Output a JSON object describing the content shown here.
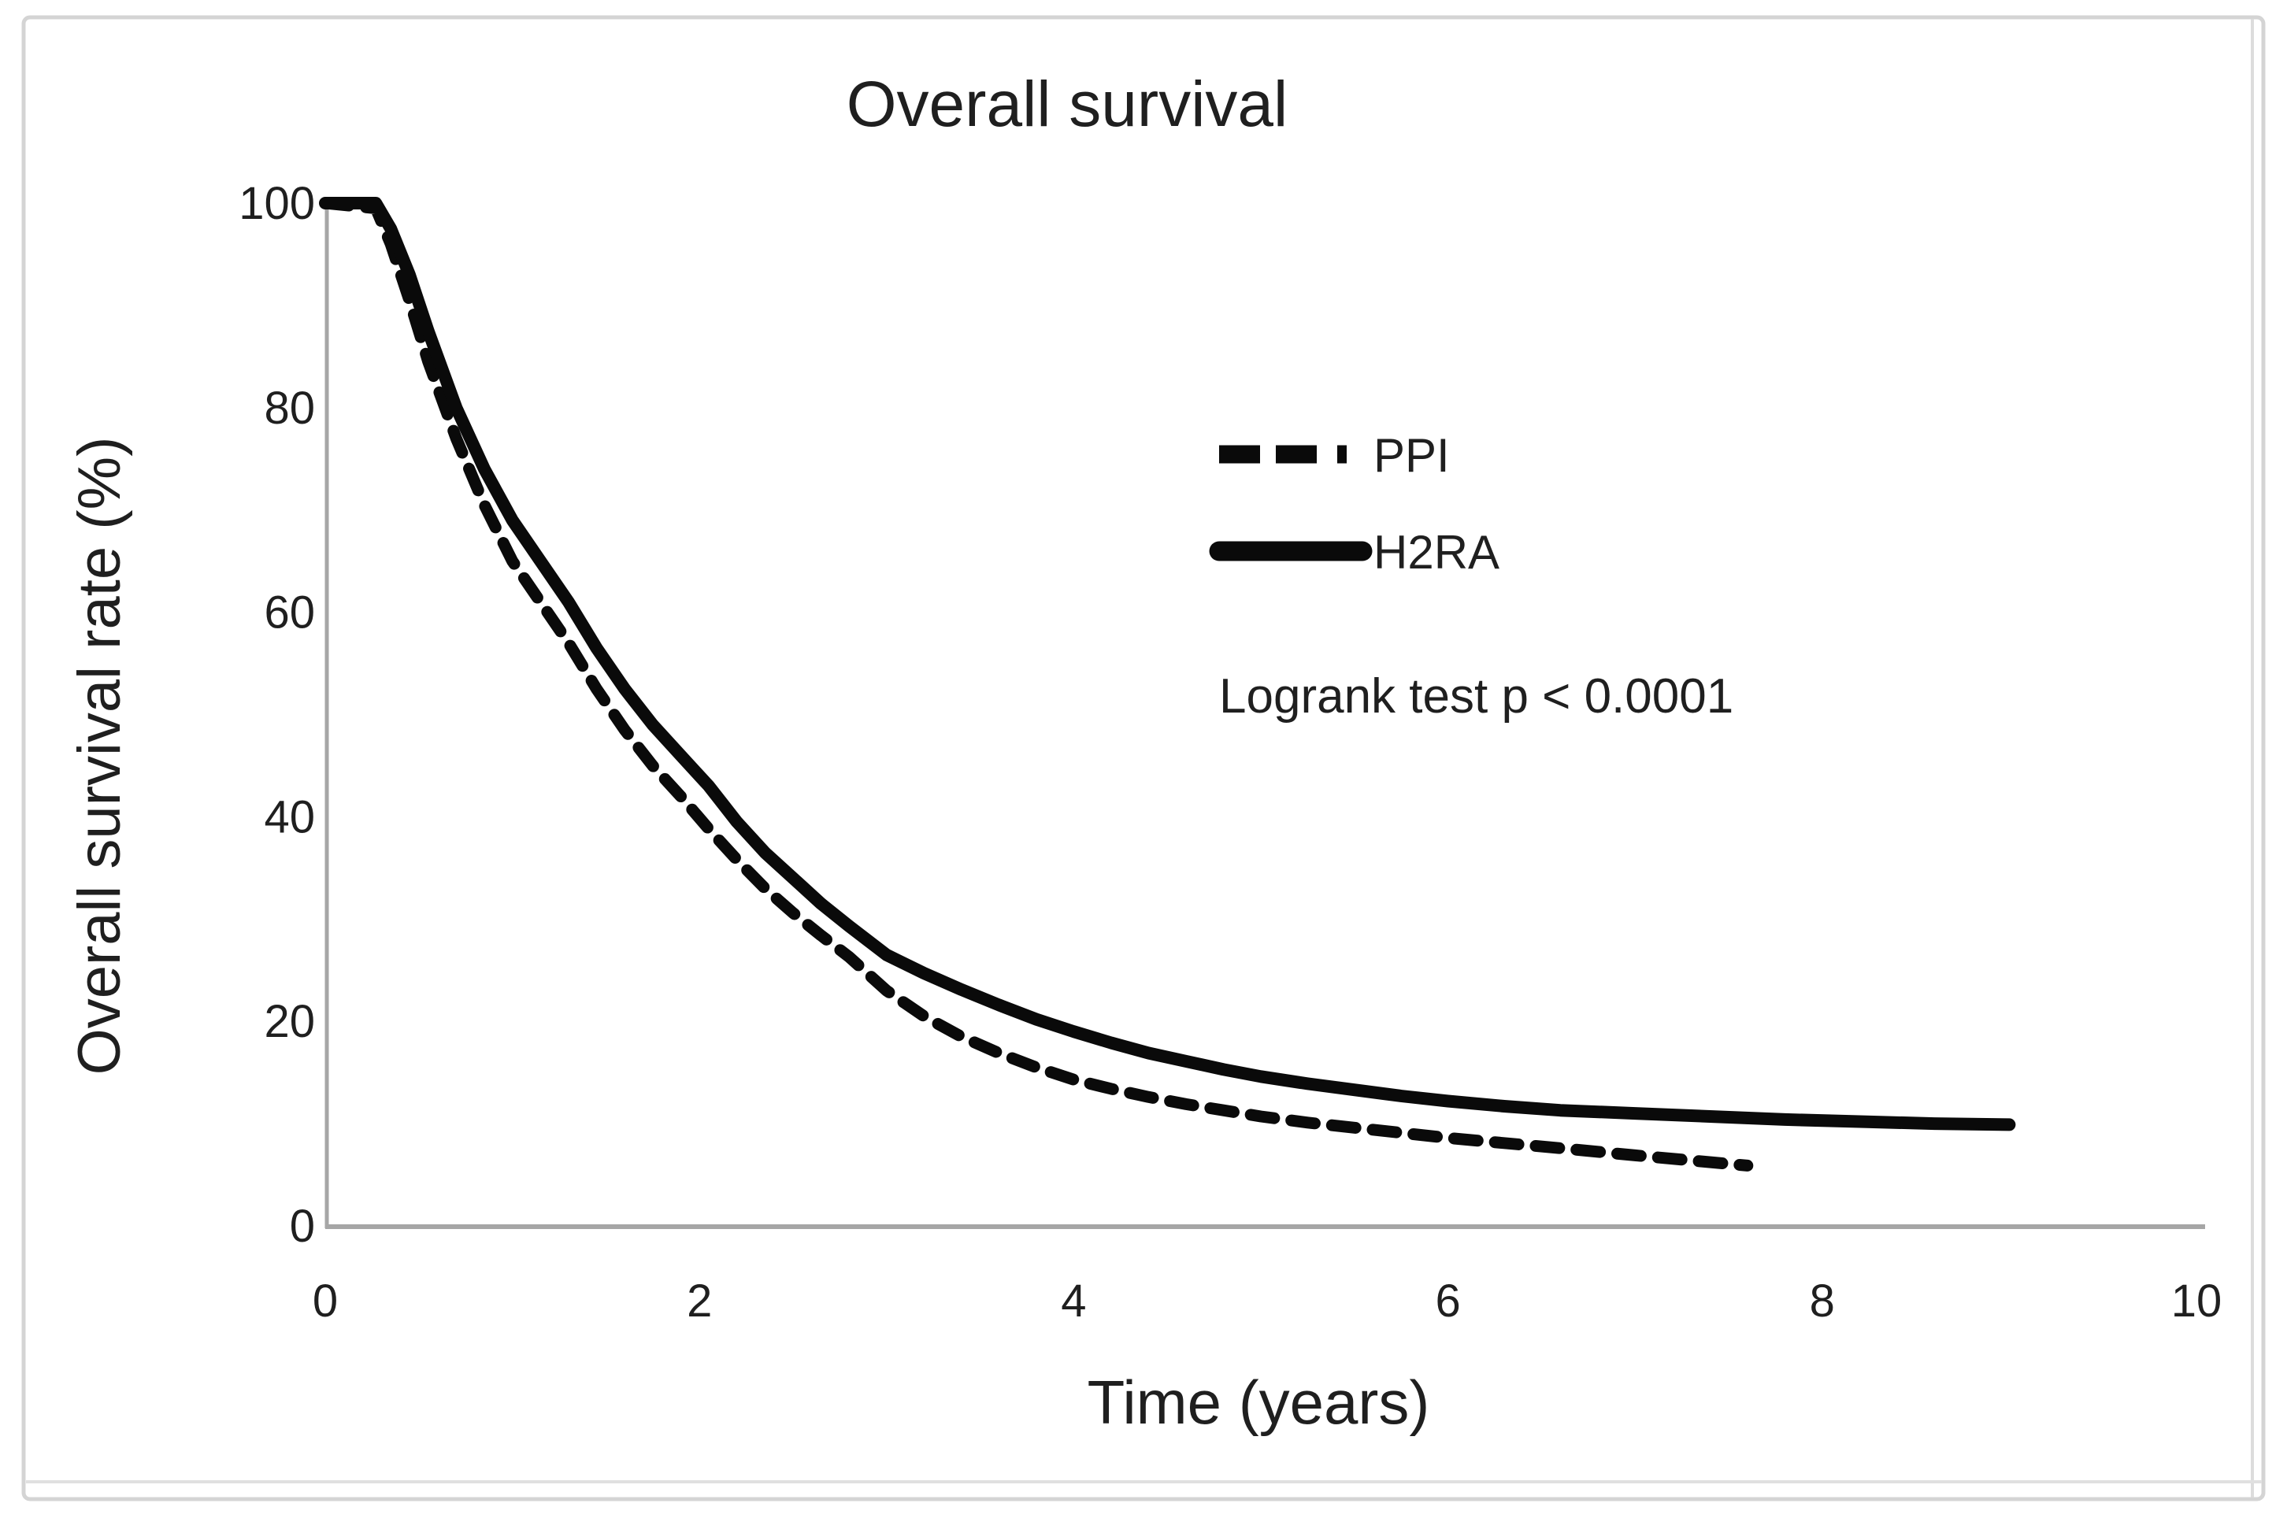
{
  "figure": {
    "title": "Overall survival",
    "x_axis": {
      "label": "Time (years)"
    },
    "y_axis": {
      "label": "Overall survival rate (%)"
    },
    "legend": [
      {
        "label": "PPI",
        "style": "dashed"
      },
      {
        "label": "H2RA",
        "style": "solid"
      }
    ],
    "annotation": "Logrank test p < 0.0001",
    "colors": {
      "curve": "#0a0a0a",
      "axis_line": "#a6a6a6",
      "border": "#d4d4d4",
      "text": "#1f1f1f"
    }
  },
  "chart_data": {
    "type": "line",
    "title": "Overall survival",
    "xlabel": "Time (years)",
    "ylabel": "Overall survival rate (%)",
    "xlim": [
      0,
      10
    ],
    "ylim": [
      0,
      100
    ],
    "xticks": [
      0,
      2,
      4,
      6,
      8,
      10
    ],
    "yticks": [
      0,
      20,
      40,
      60,
      80,
      100
    ],
    "grid": false,
    "legend_position": "center-right",
    "annotation": "Logrank test p < 0.0001",
    "series": [
      {
        "name": "PPI",
        "style": "dashed",
        "color": "#0a0a0a",
        "points": [
          [
            0,
            100
          ],
          [
            0.27,
            99.5
          ],
          [
            0.35,
            96
          ],
          [
            0.45,
            90.5
          ],
          [
            0.55,
            84.5
          ],
          [
            0.7,
            77
          ],
          [
            0.85,
            70.5
          ],
          [
            1.0,
            65
          ],
          [
            1.15,
            61
          ],
          [
            1.3,
            57
          ],
          [
            1.45,
            52.5
          ],
          [
            1.6,
            48.5
          ],
          [
            1.75,
            45
          ],
          [
            1.9,
            42
          ],
          [
            2.05,
            38.8
          ],
          [
            2.2,
            35.8
          ],
          [
            2.35,
            33
          ],
          [
            2.5,
            30.6
          ],
          [
            2.65,
            28.4
          ],
          [
            2.8,
            26.3
          ],
          [
            3.0,
            23
          ],
          [
            3.2,
            20.5
          ],
          [
            3.4,
            18.5
          ],
          [
            3.6,
            16.9
          ],
          [
            3.8,
            15.5
          ],
          [
            4.0,
            14.3
          ],
          [
            4.2,
            13.4
          ],
          [
            4.4,
            12.6
          ],
          [
            4.6,
            11.9
          ],
          [
            4.8,
            11.3
          ],
          [
            5.0,
            10.7
          ],
          [
            5.25,
            10.1
          ],
          [
            5.5,
            9.6
          ],
          [
            5.75,
            9.1
          ],
          [
            6.0,
            8.6
          ],
          [
            6.3,
            8.1
          ],
          [
            6.6,
            7.6
          ],
          [
            7.0,
            6.9
          ],
          [
            7.3,
            6.4
          ],
          [
            7.6,
            5.9
          ]
        ]
      },
      {
        "name": "H2RA",
        "style": "solid",
        "color": "#0a0a0a",
        "points": [
          [
            0,
            100
          ],
          [
            0.27,
            100
          ],
          [
            0.35,
            97.5
          ],
          [
            0.45,
            93
          ],
          [
            0.55,
            87.5
          ],
          [
            0.7,
            80
          ],
          [
            0.85,
            74
          ],
          [
            1.0,
            69
          ],
          [
            1.15,
            65
          ],
          [
            1.3,
            61
          ],
          [
            1.45,
            56.5
          ],
          [
            1.6,
            52.5
          ],
          [
            1.75,
            49
          ],
          [
            1.9,
            46
          ],
          [
            2.05,
            43
          ],
          [
            2.2,
            39.5
          ],
          [
            2.35,
            36.5
          ],
          [
            2.5,
            34
          ],
          [
            2.65,
            31.5
          ],
          [
            2.8,
            29.3
          ],
          [
            3.0,
            26.5
          ],
          [
            3.2,
            24.7
          ],
          [
            3.4,
            23.1
          ],
          [
            3.6,
            21.6
          ],
          [
            3.8,
            20.2
          ],
          [
            4.0,
            19
          ],
          [
            4.2,
            17.9
          ],
          [
            4.4,
            16.9
          ],
          [
            4.6,
            16.1
          ],
          [
            4.8,
            15.3
          ],
          [
            5.0,
            14.6
          ],
          [
            5.25,
            13.9
          ],
          [
            5.5,
            13.3
          ],
          [
            5.75,
            12.7
          ],
          [
            6.0,
            12.2
          ],
          [
            6.3,
            11.7
          ],
          [
            6.6,
            11.3
          ],
          [
            7.0,
            11
          ],
          [
            7.4,
            10.7
          ],
          [
            7.8,
            10.4
          ],
          [
            8.2,
            10.2
          ],
          [
            8.6,
            10.0
          ],
          [
            9.0,
            9.9
          ]
        ]
      }
    ]
  }
}
